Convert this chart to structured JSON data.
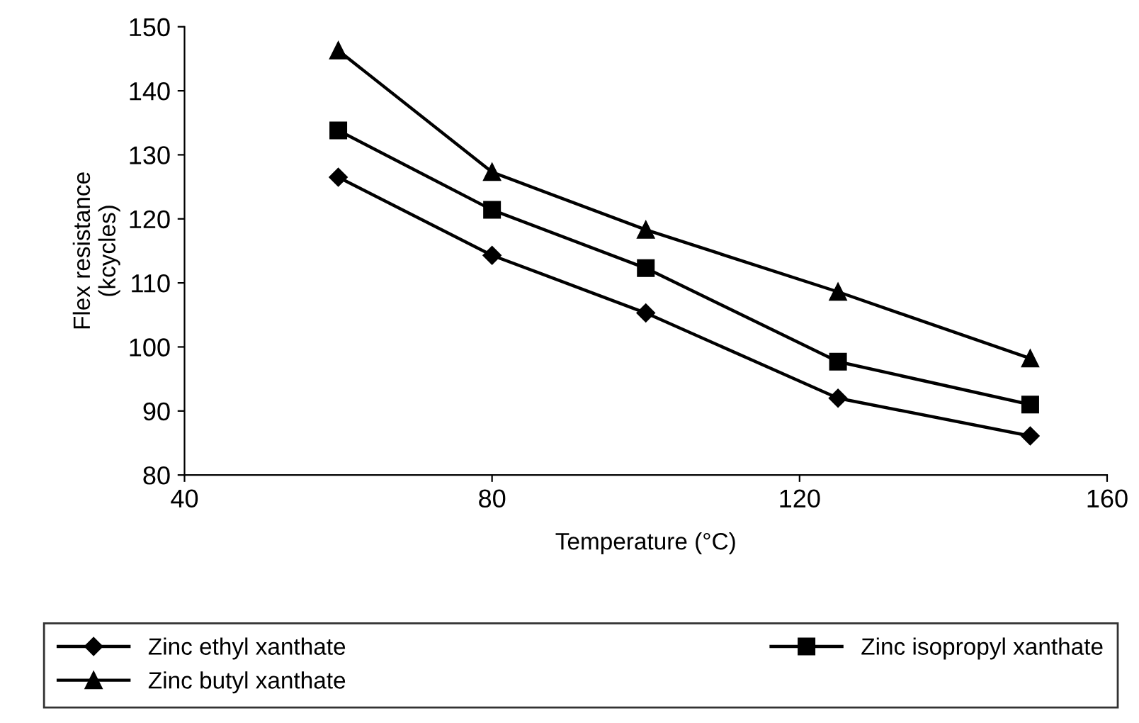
{
  "chart_data": {
    "type": "line",
    "xlabel": "Temperature (°C)",
    "ylabel": "Flex resistance\n(kcycles)",
    "x": [
      60,
      80,
      100,
      125,
      150
    ],
    "series": [
      {
        "name": "Zinc ethyl xanthate",
        "color": "#000000",
        "marker": "diamond",
        "values": [
          126.5,
          114.3,
          105.3,
          92,
          86.1
        ]
      },
      {
        "name": "Zinc isopropyl xanthate",
        "color": "#000000",
        "marker": "square",
        "values": [
          133.8,
          121.4,
          112.3,
          97.7,
          91
        ]
      },
      {
        "name": "Zinc butyl xanthate",
        "color": "#000000",
        "marker": "triangle",
        "values": [
          146.3,
          127.3,
          118.3,
          108.6,
          98.2
        ]
      }
    ],
    "xlim": [
      40,
      160
    ],
    "xticks": [
      40,
      80,
      120,
      160
    ],
    "ylim": [
      80,
      150
    ],
    "yticks": [
      80,
      90,
      100,
      110,
      120,
      130,
      140,
      150
    ],
    "grid": false,
    "legend": "bottom",
    "line_style": "solid"
  }
}
